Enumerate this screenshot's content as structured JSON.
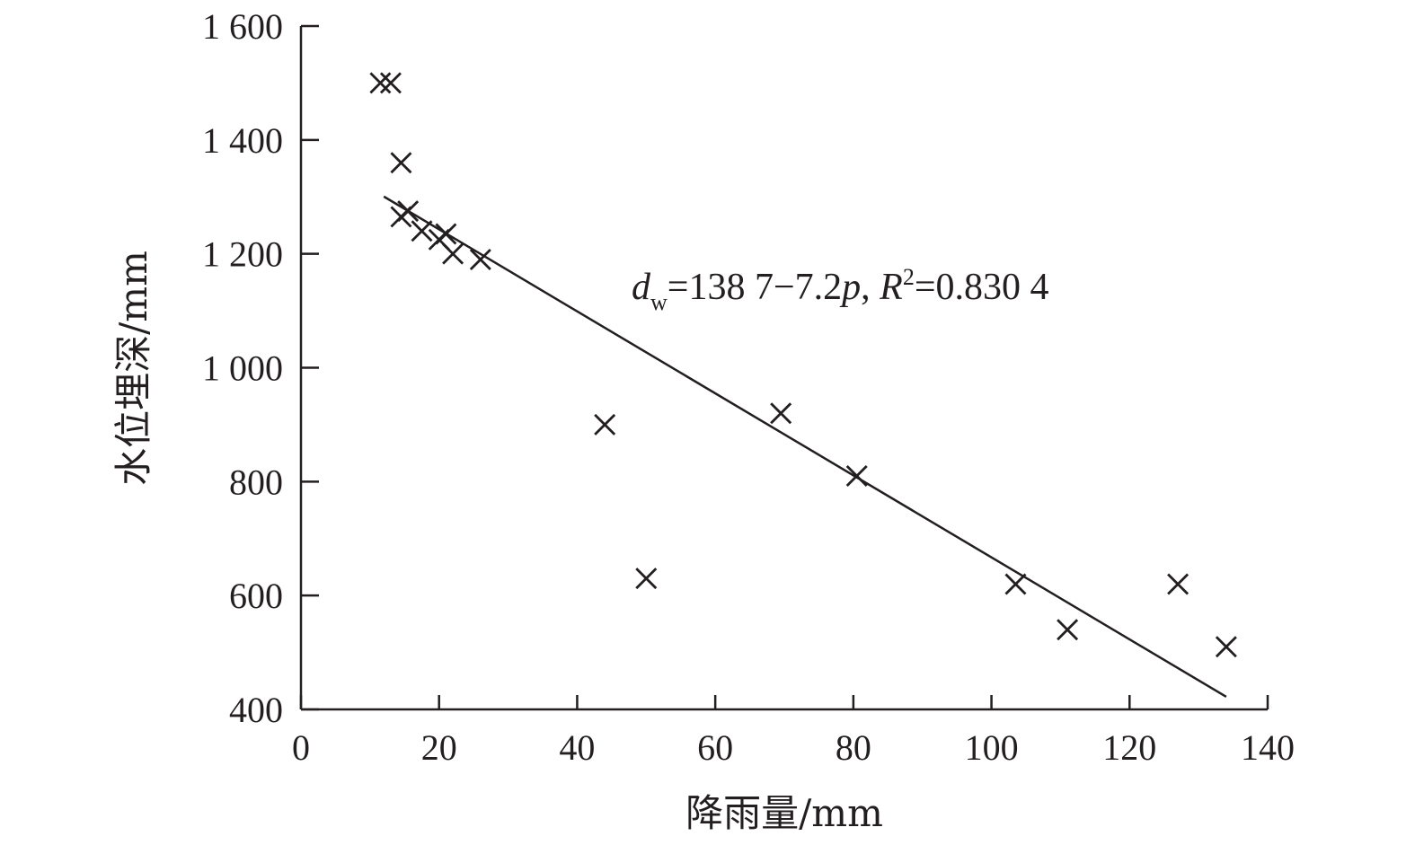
{
  "chart_data": {
    "type": "scatter",
    "xlabel": "降雨量/mm",
    "ylabel": "水位埋深/mm",
    "xlim": [
      0,
      140
    ],
    "ylim": [
      400,
      1600
    ],
    "x_ticks": [
      0,
      20,
      40,
      60,
      80,
      100,
      120,
      140
    ],
    "y_ticks": [
      400,
      600,
      800,
      1000,
      1200,
      1400,
      1600
    ],
    "x_tick_labels": [
      "0",
      "20",
      "40",
      "60",
      "80",
      "100",
      "120",
      "140"
    ],
    "y_tick_labels": [
      "400",
      "600",
      "800",
      "1 000",
      "1 200",
      "1 400",
      "1 600"
    ],
    "grid": false,
    "series": [
      {
        "marker": "x",
        "color": "#231f20",
        "points": [
          {
            "x": 11.5,
            "y": 1500
          },
          {
            "x": 13.0,
            "y": 1500
          },
          {
            "x": 14.5,
            "y": 1360
          },
          {
            "x": 14.5,
            "y": 1265
          },
          {
            "x": 15.5,
            "y": 1275
          },
          {
            "x": 17.5,
            "y": 1240
          },
          {
            "x": 20.0,
            "y": 1225
          },
          {
            "x": 21.0,
            "y": 1235
          },
          {
            "x": 22.0,
            "y": 1200
          },
          {
            "x": 26.0,
            "y": 1190
          },
          {
            "x": 44.0,
            "y": 900
          },
          {
            "x": 50.0,
            "y": 630
          },
          {
            "x": 69.5,
            "y": 920
          },
          {
            "x": 80.5,
            "y": 810
          },
          {
            "x": 103.5,
            "y": 620
          },
          {
            "x": 111.0,
            "y": 540
          },
          {
            "x": 127.0,
            "y": 620
          },
          {
            "x": 134.0,
            "y": 510
          }
        ]
      }
    ],
    "trendline": {
      "intercept": 1387,
      "slope": -7.2,
      "x_start": 12,
      "x_end": 134,
      "equation": {
        "var": "d",
        "sub": "w",
        "rhs_text": "=138 7−7.2",
        "p": "p",
        "sep": ", ",
        "r": "R",
        "sup": "2",
        "r_value": "=0.830 4"
      }
    }
  }
}
